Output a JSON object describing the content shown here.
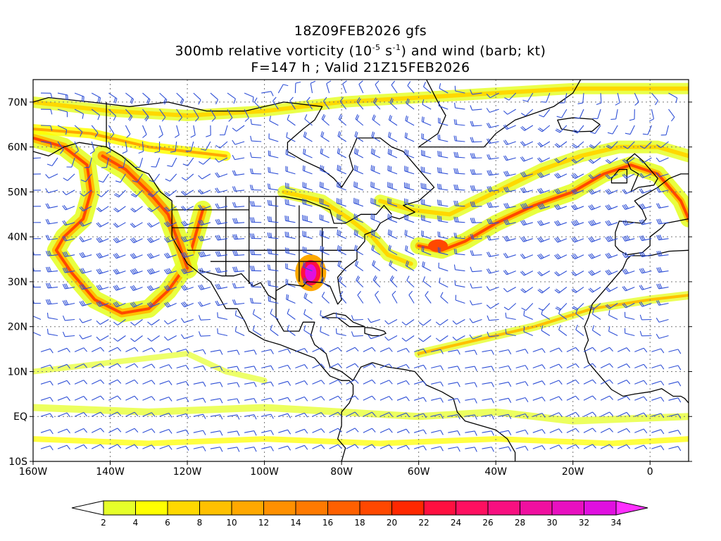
{
  "title": {
    "line1": "18Z09FEB2026 gfs",
    "line2_prefix": "300mb relative vorticity (10",
    "line2_exp1": "-5",
    "line2_mid": " s",
    "line2_exp2": "-1",
    "line2_suffix": ") and wind (barb; kt)",
    "line3": "F=147 h ; Valid 21Z15FEB2026"
  },
  "map": {
    "projection": "cylindrical",
    "lon_range": [
      -160,
      10
    ],
    "lat_range": [
      -10,
      75
    ],
    "lon_ticks": [
      -160,
      -140,
      -120,
      -100,
      -80,
      -60,
      -40,
      -20,
      0
    ],
    "lon_tick_labels": [
      "160W",
      "140W",
      "120W",
      "100W",
      "80W",
      "60W",
      "40W",
      "20W",
      "0"
    ],
    "lat_ticks": [
      -10,
      0,
      10,
      20,
      30,
      40,
      50,
      60,
      70
    ],
    "lat_tick_labels": [
      "10S",
      "EQ",
      "10N",
      "20N",
      "30N",
      "40N",
      "50N",
      "60N",
      "70N"
    ],
    "grid": "dotted",
    "coastline_color": "#000000",
    "barb_color": "#2e4fd6"
  },
  "colorbar": {
    "levels": [
      2,
      4,
      6,
      8,
      10,
      12,
      14,
      16,
      18,
      20,
      22,
      24,
      26,
      28,
      30,
      32,
      34
    ],
    "labels": [
      "2",
      "4",
      "6",
      "8",
      "10",
      "12",
      "14",
      "16",
      "18",
      "20",
      "22",
      "24",
      "26",
      "28",
      "30",
      "32",
      "34"
    ],
    "colors": [
      "#e6ff2a",
      "#ffff00",
      "#ffd800",
      "#ffc000",
      "#ffa800",
      "#ff9000",
      "#ff7a00",
      "#ff6000",
      "#ff4800",
      "#ff2800",
      "#ff1040",
      "#ff1060",
      "#f81080",
      "#f010a0",
      "#e810c0",
      "#e010e0"
    ],
    "under_color": "#ffffff",
    "over_color": "#ff30ff"
  },
  "features": {
    "vort_max_center": {
      "lon": -88,
      "lat": 32,
      "value": 34
    },
    "jet_streak_atlantic": {
      "lon": -55,
      "lat": 38
    }
  }
}
